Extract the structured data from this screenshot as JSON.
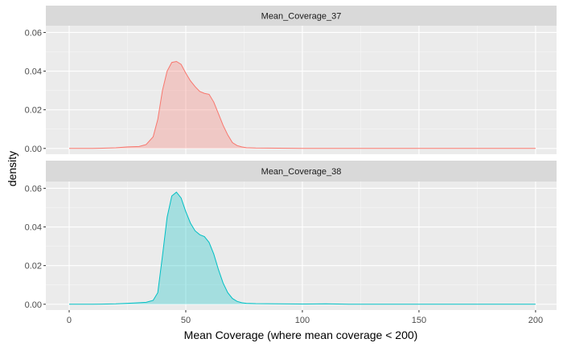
{
  "chart_data": {
    "type": "area",
    "xlabel": "Mean Coverage (where mean coverage < 200)",
    "ylabel": "density",
    "xlim": [
      -10,
      209
    ],
    "ylim": [
      -0.003,
      0.0635
    ],
    "x_ticks": [
      0,
      50,
      100,
      150,
      200
    ],
    "y_ticks": [
      0.0,
      0.02,
      0.04,
      0.06
    ],
    "x_tick_labels": [
      "0",
      "50",
      "100",
      "150",
      "200"
    ],
    "y_tick_labels": [
      "0.00",
      "0.02",
      "0.04",
      "0.06"
    ],
    "grid": true,
    "legend": "none",
    "panels": [
      {
        "strip": "Mean_Coverage_37",
        "line_color": "#F8766D",
        "fill_color": "#F8766D",
        "x": [
          0,
          10,
          20,
          25,
          30,
          33,
          36,
          38,
          40,
          42,
          44,
          46,
          48,
          50,
          52,
          54,
          56,
          58,
          60,
          62,
          64,
          66,
          68,
          70,
          72,
          74,
          76,
          80,
          90,
          100,
          120,
          150,
          180,
          200
        ],
        "y": [
          0.0,
          0.0,
          0.0003,
          0.0008,
          0.001,
          0.002,
          0.006,
          0.015,
          0.03,
          0.04,
          0.0445,
          0.045,
          0.0435,
          0.039,
          0.035,
          0.032,
          0.0295,
          0.0285,
          0.028,
          0.024,
          0.018,
          0.012,
          0.007,
          0.003,
          0.0015,
          0.0008,
          0.0004,
          0.0002,
          0.0001,
          0.0,
          0.0,
          0.0,
          0.0,
          0.0
        ]
      },
      {
        "strip": "Mean_Coverage_38",
        "line_color": "#00BFC4",
        "fill_color": "#00BFC4",
        "x": [
          0,
          10,
          20,
          25,
          30,
          33,
          36,
          38,
          40,
          42,
          44,
          46,
          48,
          50,
          52,
          54,
          56,
          58,
          60,
          62,
          64,
          66,
          68,
          70,
          72,
          74,
          76,
          80,
          90,
          100,
          110,
          120,
          150,
          180,
          200
        ],
        "y": [
          0.0,
          0.0,
          0.0002,
          0.0005,
          0.0008,
          0.001,
          0.002,
          0.006,
          0.025,
          0.045,
          0.056,
          0.058,
          0.055,
          0.048,
          0.042,
          0.038,
          0.036,
          0.035,
          0.032,
          0.026,
          0.018,
          0.011,
          0.006,
          0.003,
          0.0015,
          0.0008,
          0.0005,
          0.0003,
          0.0002,
          0.0001,
          0.0002,
          0.0,
          0.0,
          0.0,
          0.0
        ]
      }
    ]
  }
}
